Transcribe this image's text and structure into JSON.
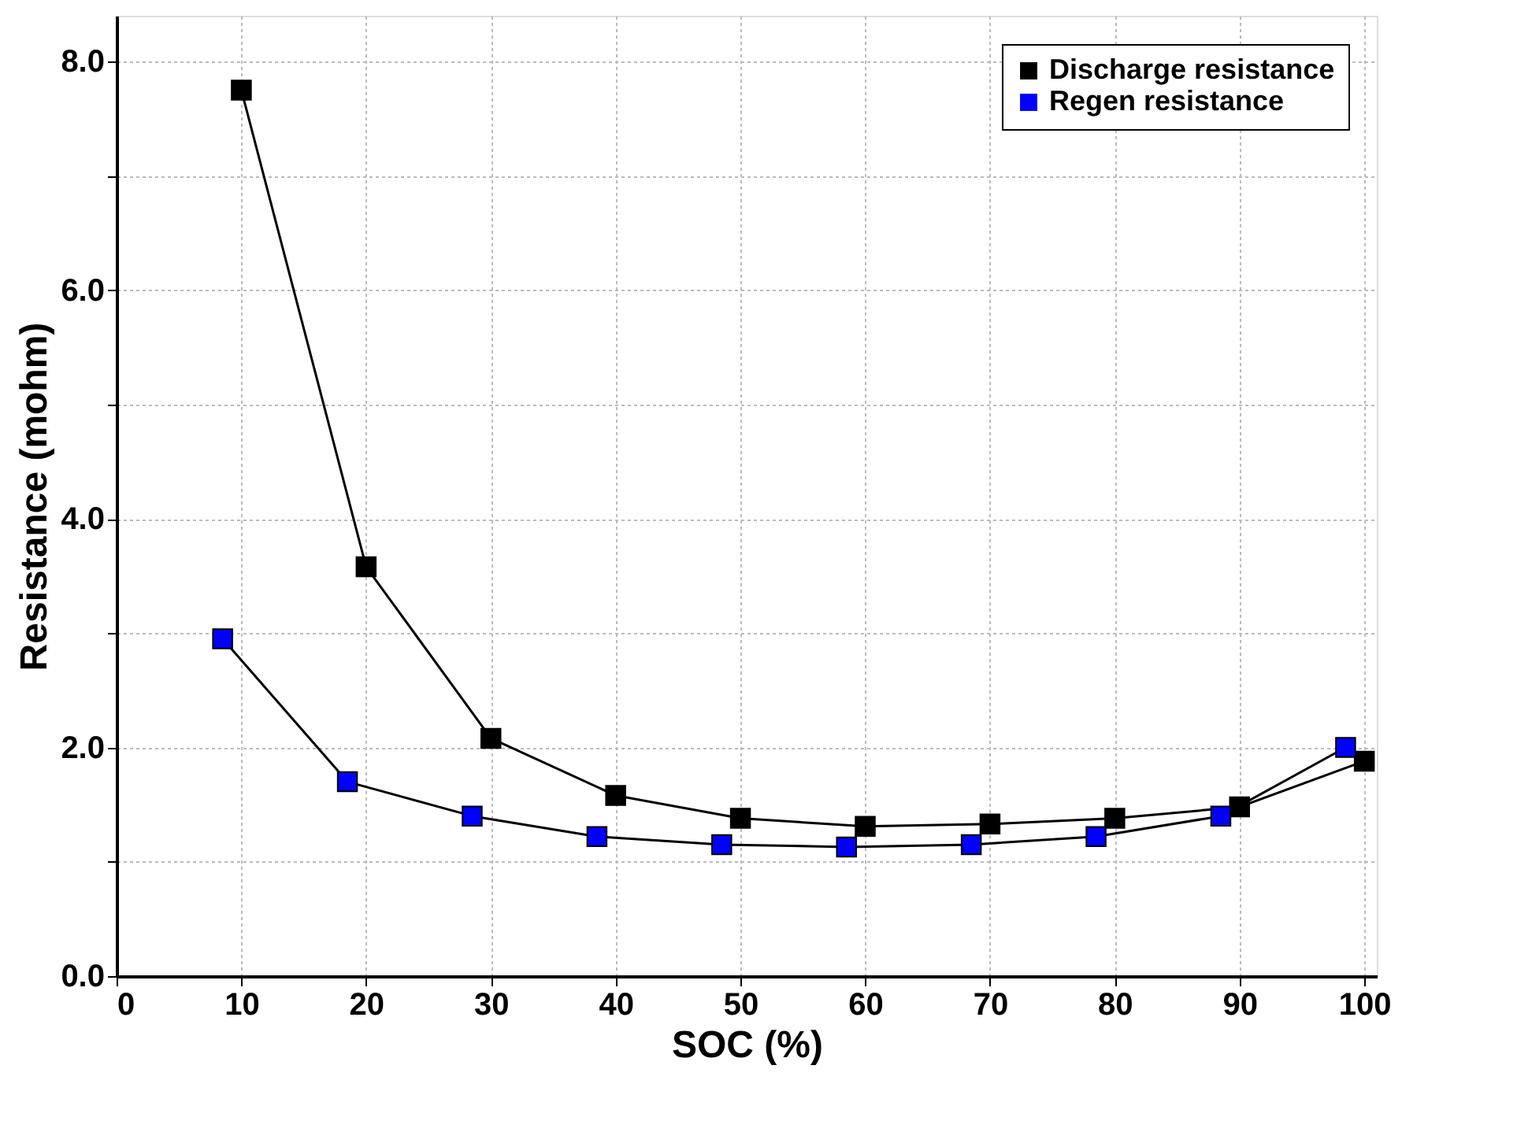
{
  "chart_data": {
    "type": "line",
    "xlabel": "SOC (%)",
    "ylabel": "Resistance (mohm)",
    "series": [
      {
        "name": "Discharge resistance",
        "color": "#000000",
        "x": [
          10,
          20,
          30,
          40,
          50,
          60,
          70,
          80,
          90,
          100
        ],
        "values": [
          7.75,
          3.58,
          2.08,
          1.58,
          1.38,
          1.31,
          1.33,
          1.38,
          1.48,
          1.88
        ]
      },
      {
        "name": "Regen resistance",
        "color": "#0000ff",
        "x": [
          8.5,
          18.5,
          28.5,
          38.5,
          48.5,
          58.5,
          68.5,
          78.5,
          88.5,
          98.5
        ],
        "values": [
          2.95,
          1.7,
          1.4,
          1.22,
          1.15,
          1.13,
          1.15,
          1.22,
          1.4,
          2.0
        ]
      }
    ],
    "xlim": [
      0,
      101
    ],
    "xticks": [
      0,
      10,
      20,
      30,
      40,
      50,
      60,
      70,
      80,
      90,
      100
    ],
    "ylim": [
      0,
      8.4
    ],
    "yticks": [
      {
        "value": 0,
        "label": "0.0"
      },
      {
        "value": 1,
        "label": null
      },
      {
        "value": 2,
        "label": "2.0"
      },
      {
        "value": 3,
        "label": null
      },
      {
        "value": 4,
        "label": "4.0"
      },
      {
        "value": 5,
        "label": null
      },
      {
        "value": 6,
        "label": "6.0"
      },
      {
        "value": 7,
        "label": null
      },
      {
        "value": 8,
        "label": "8.0"
      }
    ],
    "grid": true,
    "legend": "top right",
    "marker": "square",
    "line_style": "solid"
  }
}
